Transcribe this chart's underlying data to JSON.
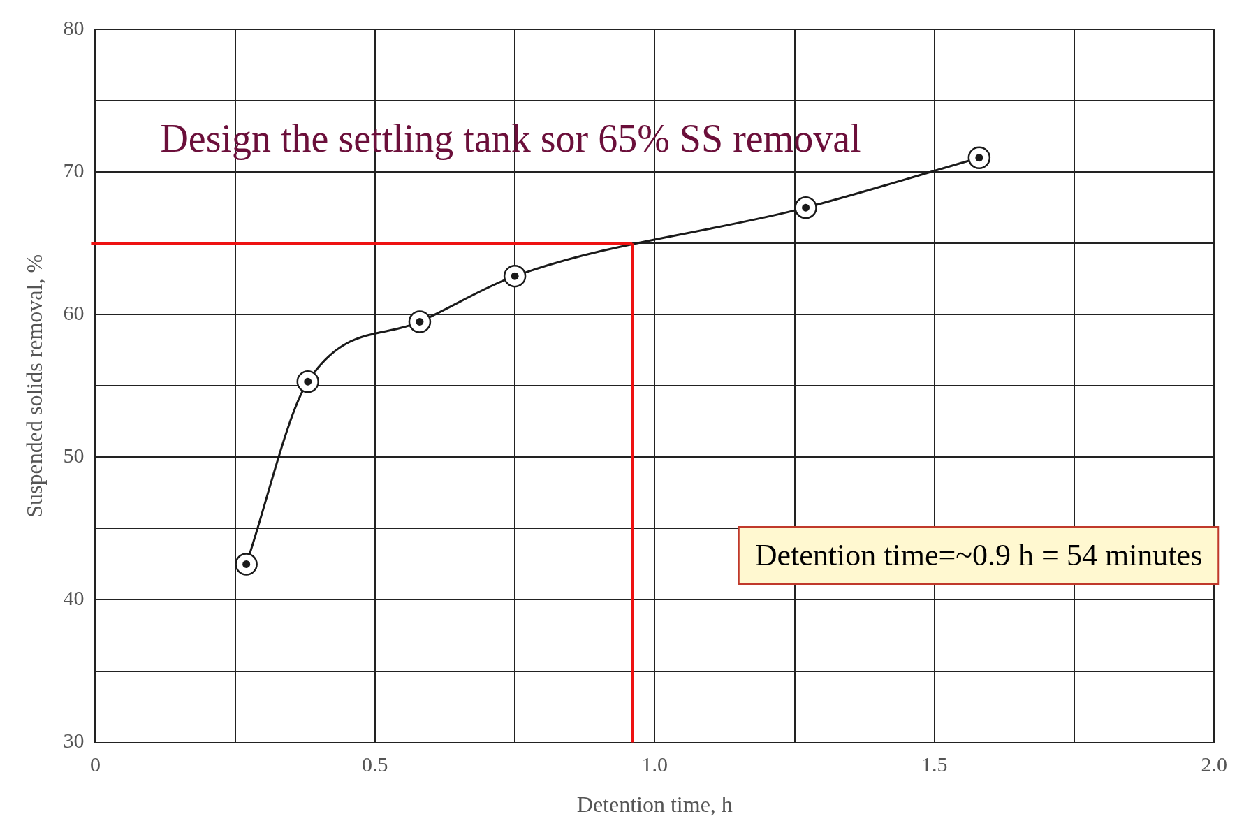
{
  "chart_data": {
    "type": "line",
    "xlabel": "Detention time, h",
    "ylabel": "Suspended solids removal, %",
    "x": [
      0.27,
      0.38,
      0.58,
      0.75,
      1.27,
      1.58
    ],
    "series": [
      {
        "color": "#1a1a1a",
        "values": [
          42.5,
          55.3,
          59.5,
          62.7,
          67.5,
          71
        ]
      }
    ],
    "xlim": [
      0,
      2
    ],
    "ylim": [
      30,
      80
    ],
    "xticks": [
      0,
      {
        "value": 0.25,
        "label": null
      },
      0.5,
      {
        "value": 0.75,
        "label": null
      },
      {
        "value": 1,
        "label": "1.0"
      },
      {
        "value": 1.25,
        "label": null
      },
      1.5,
      {
        "value": 1.75,
        "label": null
      },
      {
        "value": 2,
        "label": "2.0"
      }
    ],
    "yticks": [
      30,
      {
        "value": 35,
        "label": null
      },
      40,
      {
        "value": 45,
        "label": null
      },
      50,
      {
        "value": 55,
        "label": null
      },
      60,
      {
        "value": 65,
        "label": null
      },
      70,
      {
        "value": 75,
        "label": null
      },
      80
    ],
    "ref_lines": [
      {
        "axis": "y",
        "value": 65,
        "color": "#ee1111"
      },
      {
        "axis": "x",
        "value": 0.96,
        "color": "#ee1111"
      }
    ],
    "annotations": [
      "Design the settling tank sor 65% SS removal",
      "Detention time=~0.9 h = 54 minutes"
    ],
    "grid": true,
    "legend": false,
    "marker": "circle",
    "line_style": "solid"
  }
}
